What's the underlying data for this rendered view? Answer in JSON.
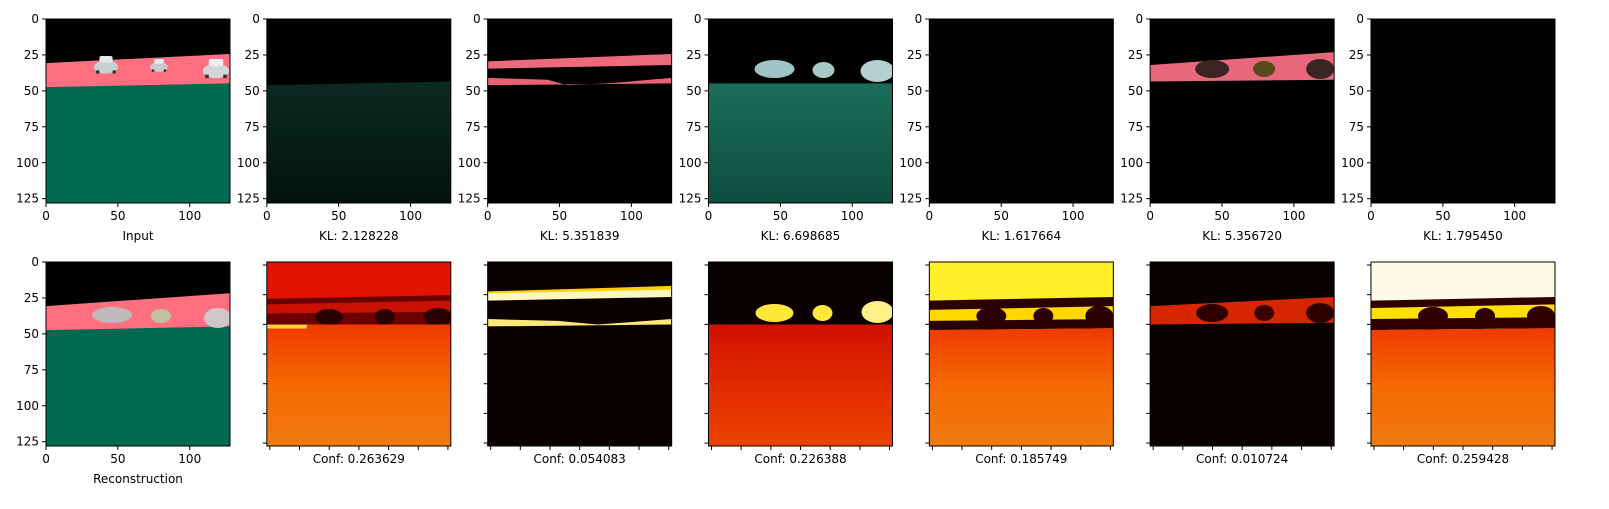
{
  "chart_data": [
    {
      "type": "image",
      "row": 0,
      "panel": 0,
      "content": "segmentation-input",
      "xlabel": "Input",
      "xlim": [
        0,
        128
      ],
      "ylim": [
        128,
        0
      ],
      "xticks": [
        0,
        50,
        100
      ],
      "yticks": [
        0,
        25,
        50,
        75,
        100,
        125
      ],
      "show_tick_labels": true
    },
    {
      "type": "image",
      "row": 0,
      "panel": 1,
      "content": "slot-road-dim",
      "xlabel": "KL: 2.128228",
      "kl": 2.128228,
      "xlim": [
        0,
        128
      ],
      "ylim": [
        128,
        0
      ],
      "xticks": [
        0,
        50,
        100
      ],
      "yticks": [
        0,
        25,
        50,
        75,
        100,
        125
      ],
      "show_tick_labels": true
    },
    {
      "type": "image",
      "row": 0,
      "panel": 2,
      "content": "slot-sky-band",
      "xlabel": "KL: 5.351839",
      "kl": 5.351839,
      "xlim": [
        0,
        128
      ],
      "ylim": [
        128,
        0
      ],
      "xticks": [
        0,
        50,
        100
      ],
      "yticks": [
        0,
        25,
        50,
        75,
        100,
        125
      ],
      "show_tick_labels": true
    },
    {
      "type": "image",
      "row": 0,
      "panel": 3,
      "content": "slot-cars-road",
      "xlabel": "KL: 6.698685",
      "kl": 6.698685,
      "xlim": [
        0,
        128
      ],
      "ylim": [
        128,
        0
      ],
      "xticks": [
        0,
        50,
        100
      ],
      "yticks": [
        0,
        25,
        50,
        75,
        100,
        125
      ],
      "show_tick_labels": true
    },
    {
      "type": "image",
      "row": 0,
      "panel": 4,
      "content": "slot-empty",
      "xlabel": "KL: 1.617664",
      "kl": 1.617664,
      "xlim": [
        0,
        128
      ],
      "ylim": [
        128,
        0
      ],
      "xticks": [
        0,
        50,
        100
      ],
      "yticks": [
        0,
        25,
        50,
        75,
        100,
        125
      ],
      "show_tick_labels": true
    },
    {
      "type": "image",
      "row": 0,
      "panel": 5,
      "content": "slot-sky-cars",
      "xlabel": "KL: 5.356720",
      "kl": 5.35672,
      "xlim": [
        0,
        128
      ],
      "ylim": [
        128,
        0
      ],
      "xticks": [
        0,
        50,
        100
      ],
      "yticks": [
        0,
        25,
        50,
        75,
        100,
        125
      ],
      "show_tick_labels": true
    },
    {
      "type": "image",
      "row": 0,
      "panel": 6,
      "content": "slot-empty",
      "xlabel": "KL: 1.795450",
      "kl": 1.79545,
      "xlim": [
        0,
        128
      ],
      "ylim": [
        128,
        0
      ],
      "xticks": [
        0,
        50,
        100
      ],
      "yticks": [
        0,
        25,
        50,
        75,
        100,
        125
      ],
      "show_tick_labels": true
    },
    {
      "type": "image",
      "row": 1,
      "panel": 0,
      "content": "segmentation-reconstruction",
      "xlabel": "Reconstruction",
      "xlim": [
        0,
        128
      ],
      "ylim": [
        128,
        0
      ],
      "xticks": [
        0,
        50,
        100
      ],
      "yticks": [
        0,
        25,
        50,
        75,
        100,
        125
      ],
      "show_tick_labels": true
    },
    {
      "type": "heatmap",
      "row": 1,
      "panel": 1,
      "colormap": "hot",
      "content": "conf-road-red",
      "xlabel": "Conf: 0.263629",
      "conf": 0.263629,
      "show_tick_labels": false
    },
    {
      "type": "heatmap",
      "row": 1,
      "panel": 2,
      "colormap": "hot",
      "content": "conf-sky-band",
      "xlabel": "Conf: 0.054083",
      "conf": 0.054083,
      "show_tick_labels": false
    },
    {
      "type": "heatmap",
      "row": 1,
      "panel": 3,
      "colormap": "hot",
      "content": "conf-cars-road",
      "xlabel": "Conf: 0.226388",
      "conf": 0.226388,
      "show_tick_labels": false
    },
    {
      "type": "heatmap",
      "row": 1,
      "panel": 4,
      "colormap": "hot",
      "content": "conf-yellow-sky",
      "xlabel": "Conf: 0.185749",
      "conf": 0.185749,
      "show_tick_labels": false
    },
    {
      "type": "heatmap",
      "row": 1,
      "panel": 5,
      "colormap": "hot",
      "content": "conf-dark-band",
      "xlabel": "Conf: 0.010724",
      "conf": 0.010724,
      "show_tick_labels": false
    },
    {
      "type": "heatmap",
      "row": 1,
      "panel": 6,
      "colormap": "hot",
      "content": "conf-bright-sky",
      "xlabel": "Conf: 0.259428",
      "conf": 0.259428,
      "show_tick_labels": false
    }
  ],
  "colors": {
    "sky": "#000000",
    "building": "#ff6f7f",
    "road": "#00694f",
    "car_body": "#b8c4cc",
    "dim_road": "#081f19",
    "hot_black": "#0b0000",
    "hot_red": "#e01600",
    "hot_orange": "#f05a00",
    "hot_yellow": "#ffff30",
    "hot_white": "#fffbe6"
  }
}
